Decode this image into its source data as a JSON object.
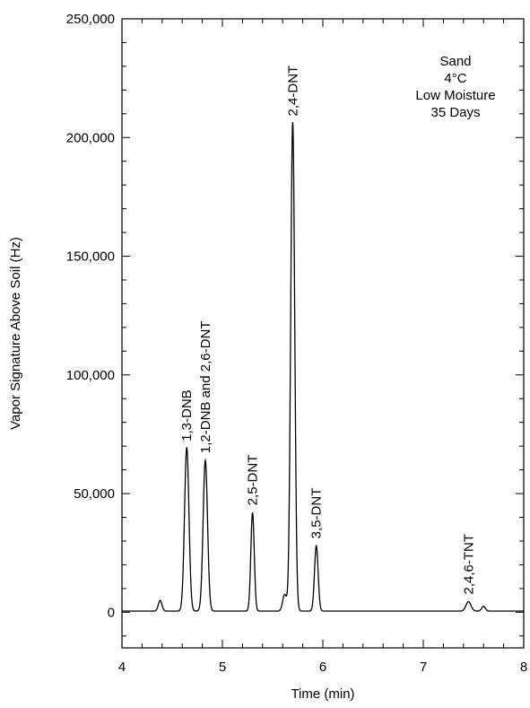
{
  "chart_data": {
    "type": "line",
    "title": "",
    "xlabel": "Time (min)",
    "ylabel": "Vapor Signature Above Soil (Hz)",
    "xlim": [
      4,
      8
    ],
    "ylim": [
      -15000,
      250000
    ],
    "x_ticks": [
      {
        "value": 4,
        "label": "4"
      },
      {
        "value": 5,
        "label": "5"
      },
      {
        "value": 6,
        "label": "6"
      },
      {
        "value": 7,
        "label": "7"
      },
      {
        "value": 8,
        "label": "8"
      }
    ],
    "y_ticks": [
      {
        "value": 0,
        "label": "0"
      },
      {
        "value": 50000,
        "label": "50,000"
      },
      {
        "value": 100000,
        "label": "100,000"
      },
      {
        "value": 150000,
        "label": "150,000"
      },
      {
        "value": 200000,
        "label": "200,000"
      },
      {
        "value": 250000,
        "label": "250,000"
      }
    ],
    "x_minor_step": 0.2,
    "y_minor_step": 10000,
    "grid": false,
    "series": [
      {
        "baseline": 500,
        "peaks": [
          {
            "x": 4.38,
            "height": 4500,
            "width": 0.018
          },
          {
            "x": 4.645,
            "height": 69000,
            "width": 0.022
          },
          {
            "x": 4.83,
            "height": 63500,
            "width": 0.022
          },
          {
            "x": 5.3,
            "height": 41500,
            "width": 0.017
          },
          {
            "x": 5.62,
            "height": 7000,
            "width": 0.02
          },
          {
            "x": 5.7,
            "height": 206000,
            "width": 0.02
          },
          {
            "x": 5.935,
            "height": 27500,
            "width": 0.018
          },
          {
            "x": 7.45,
            "height": 4000,
            "width": 0.025
          },
          {
            "x": 7.6,
            "height": 2000,
            "width": 0.018
          }
        ]
      }
    ],
    "annotations": [
      {
        "text": "1,3-DNB",
        "x": 4.645,
        "y": 72000,
        "rotation": -90
      },
      {
        "text": "1,2-DNB and 2,6-DNT",
        "x": 4.83,
        "y": 67000,
        "rotation": -90
      },
      {
        "text": "2,5-DNT",
        "x": 5.3,
        "y": 45000,
        "rotation": -90
      },
      {
        "text": "2,4-DNT",
        "x": 5.7,
        "y": 209000,
        "rotation": -90
      },
      {
        "text": "3,5-DNT",
        "x": 5.935,
        "y": 31000,
        "rotation": -90
      },
      {
        "text": "2,4,6-TNT",
        "x": 7.45,
        "y": 7500,
        "rotation": -90
      }
    ],
    "condition_text": [
      "Sand",
      "4°C",
      "Low Moisture",
      "35 Days"
    ]
  }
}
